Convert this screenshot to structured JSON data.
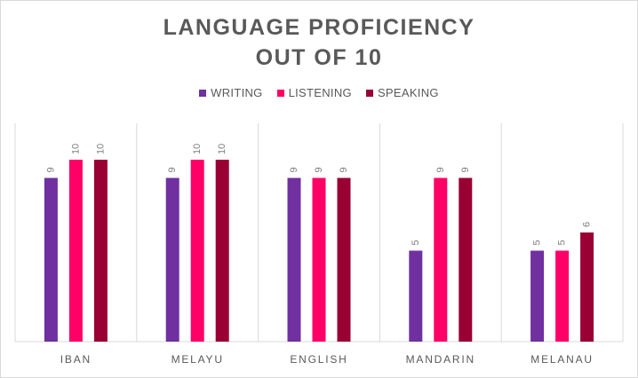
{
  "chart_data": {
    "type": "bar",
    "title_lines": [
      "LANGUAGE PROFICIENCY",
      "OUT OF 10"
    ],
    "categories": [
      "IBAN",
      "MELAYU",
      "ENGLISH",
      "MANDARIN",
      "MELANAU"
    ],
    "series": [
      {
        "name": "WRITING",
        "color": "#7030a0",
        "values": [
          9,
          9,
          9,
          5,
          5
        ]
      },
      {
        "name": "LISTENING",
        "color": "#ff0066",
        "values": [
          10,
          10,
          9,
          9,
          5
        ]
      },
      {
        "name": "SPEAKING",
        "color": "#990033",
        "values": [
          10,
          10,
          9,
          9,
          6
        ]
      }
    ],
    "xlabel": "",
    "ylabel": "",
    "ylim": [
      0,
      12
    ],
    "legend_position": "top",
    "grid": "vertical category separators",
    "data_labels": true
  }
}
